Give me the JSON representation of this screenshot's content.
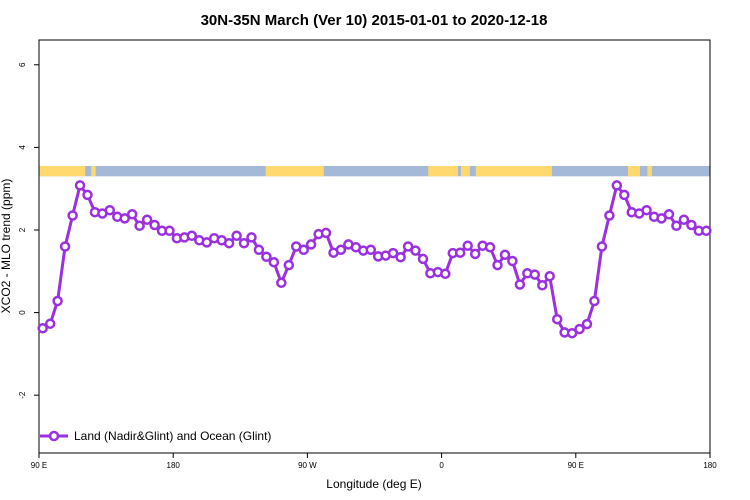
{
  "chart_data": {
    "type": "line",
    "title": "30N-35N March (Ver 10)   2015-01-01 to 2020-12-18",
    "xlabel": "Longitude (deg E)",
    "ylabel": "XCO2 - MLO trend (ppm)",
    "xlim": [
      90,
      540
    ],
    "ylim": [
      -3.4,
      6.6
    ],
    "x_ticks": [
      {
        "value": 90,
        "label": "90 E"
      },
      {
        "value": 180,
        "label": "180"
      },
      {
        "value": 270,
        "label": "90 W"
      },
      {
        "value": 360,
        "label": "0"
      },
      {
        "value": 450,
        "label": "90 E"
      },
      {
        "value": 540,
        "label": "180"
      }
    ],
    "y_ticks": [
      {
        "value": -2,
        "label": "-2"
      },
      {
        "value": 0,
        "label": "0"
      },
      {
        "value": 2,
        "label": "2"
      },
      {
        "value": 4,
        "label": "4"
      },
      {
        "value": 6,
        "label": "6"
      }
    ],
    "grid": false,
    "legend": {
      "position": "bottom-left",
      "entries": [
        "Land (Nadir&Glint) and Ocean (Glint)"
      ]
    },
    "series": [
      {
        "name": "Land (Nadir&Glint) and Ocean (Glint)",
        "color": "#9b30e0",
        "x": [
          92.5,
          97.5,
          102.5,
          107.5,
          112.5,
          117.5,
          122.5,
          127.5,
          132.5,
          137.5,
          142.5,
          147.5,
          152.5,
          157.5,
          162.5,
          167.5,
          172.5,
          177.5,
          182.5,
          187.5,
          192.5,
          197.5,
          202.5,
          207.5,
          212.5,
          217.5,
          222.5,
          227.5,
          232.5,
          237.5,
          242.5,
          247.5,
          252.5,
          257.5,
          262.5,
          267.5,
          272.5,
          277.5,
          282.5,
          287.5,
          292.5,
          297.5,
          302.5,
          307.5,
          312.5,
          317.5,
          322.5,
          327.5,
          332.5,
          337.5,
          342.5,
          347.5,
          352.5,
          357.5,
          362.5,
          367.5,
          372.5,
          377.5,
          382.5,
          387.5,
          392.5,
          397.5,
          402.5,
          407.5,
          412.5,
          417.5,
          422.5,
          427.5,
          432.5,
          437.5,
          442.5,
          447.5,
          452.5,
          457.5,
          462.5,
          467.5,
          472.5,
          477.5,
          482.5,
          487.5,
          492.5,
          497.5,
          502.5,
          507.5,
          512.5,
          517.5,
          522.5,
          527.5,
          532.5,
          537.5
        ],
        "values": [
          -0.38,
          -0.27,
          0.28,
          1.6,
          2.35,
          3.08,
          2.85,
          2.43,
          2.4,
          2.48,
          2.32,
          2.28,
          2.38,
          2.1,
          2.25,
          2.12,
          1.98,
          1.98,
          1.8,
          1.82,
          1.86,
          1.75,
          1.7,
          1.8,
          1.75,
          1.68,
          1.86,
          1.68,
          1.82,
          1.52,
          1.35,
          1.22,
          0.72,
          1.15,
          1.6,
          1.52,
          1.65,
          1.9,
          1.93,
          1.45,
          1.52,
          1.65,
          1.58,
          1.5,
          1.52,
          1.36,
          1.38,
          1.44,
          1.34,
          1.6,
          1.5,
          1.3,
          0.95,
          0.98,
          0.94,
          1.44,
          1.45,
          1.62,
          1.42,
          1.62,
          1.58,
          1.15,
          1.4,
          1.25,
          0.68,
          0.95,
          0.92,
          0.66,
          0.88,
          -0.16,
          -0.48,
          -0.5,
          -0.4,
          -0.28,
          0.28,
          1.6,
          2.35,
          3.08,
          2.85,
          2.43,
          2.4,
          2.48,
          2.32,
          2.28,
          2.38,
          2.1,
          2.25,
          2.12,
          1.98,
          1.98
        ]
      }
    ],
    "surface_band": {
      "land_color": "#ffd86e",
      "ocean_color": "#a4b8d8",
      "land_ranges": [
        [
          90,
          121
        ],
        [
          125,
          128
        ],
        [
          242,
          281
        ],
        [
          351,
          371
        ],
        [
          373,
          379
        ],
        [
          383,
          434
        ],
        [
          485,
          493
        ],
        [
          498,
          501
        ]
      ]
    }
  }
}
